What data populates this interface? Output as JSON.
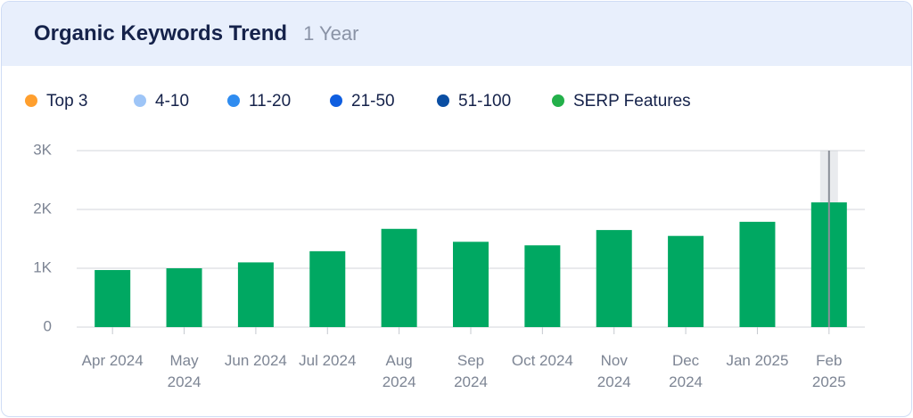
{
  "chart_data": {
    "type": "bar",
    "title": "Organic Keywords Trend",
    "subtitle": "1 Year",
    "legend": [
      {
        "name": "Top 3",
        "color": "#ff9f2e"
      },
      {
        "name": "4-10",
        "color": "#9ec5f7"
      },
      {
        "name": "11-20",
        "color": "#2f8cf0"
      },
      {
        "name": "21-50",
        "color": "#0f5ee0"
      },
      {
        "name": "51-100",
        "color": "#0a4ea3"
      },
      {
        "name": "SERP Features",
        "color": "#23b04a"
      }
    ],
    "categories": [
      "Apr 2024",
      "May 2024",
      "Jun 2024",
      "Jul 2024",
      "Aug 2024",
      "Sep 2024",
      "Oct 2024",
      "Nov 2024",
      "Dec 2024",
      "Jan 2025",
      "Feb 2025"
    ],
    "values": [
      970,
      1000,
      1100,
      1290,
      1670,
      1450,
      1390,
      1650,
      1550,
      1790,
      2120
    ],
    "color": "#00a862",
    "ylim": [
      0,
      3000
    ],
    "yticks": [
      0,
      {
        "value": 1000,
        "label": "1K"
      },
      {
        "value": 2000,
        "label": "2K"
      },
      {
        "value": 3000,
        "label": "3K"
      }
    ],
    "grid": true
  }
}
